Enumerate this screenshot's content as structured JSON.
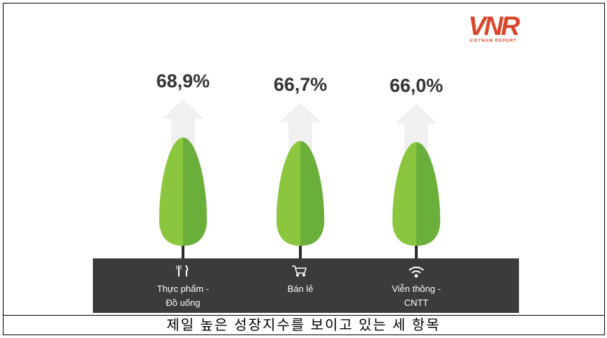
{
  "logo": {
    "mark": "VNR",
    "name": "VIETNAM REPORT"
  },
  "chart_data": {
    "type": "tree",
    "categories": [
      "Thực phẩm - Đồ uống",
      "Bán lẻ",
      "Viễn thông - CNTT"
    ],
    "values": [
      68.9,
      66.7,
      66.0
    ],
    "value_labels": [
      "68,9%",
      "66,7%",
      "66,0%"
    ],
    "colors": [
      "#8cc63f",
      "#6aaf3a"
    ]
  },
  "caption": "제일 높은 성장지수를 보이고 있는 세 항목"
}
